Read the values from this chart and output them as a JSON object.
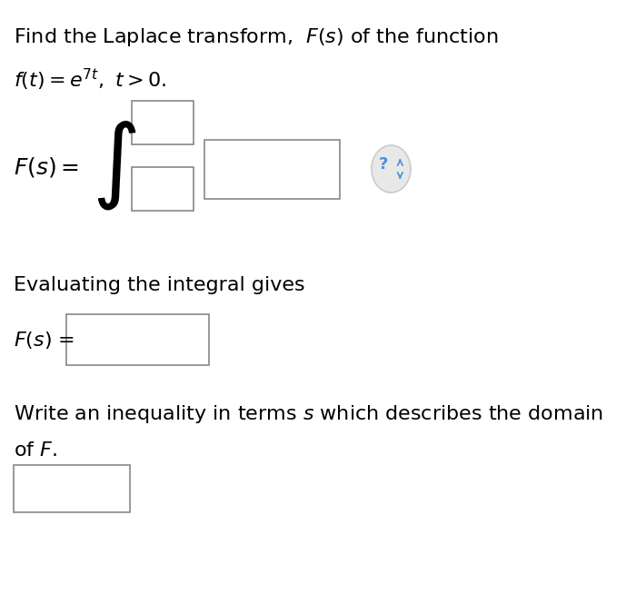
{
  "bg_color": "#ffffff",
  "text_color": "#000000",
  "title_line1": "Find the Laplace transform,  $F(s)$ of the function",
  "title_line2": "$f(t) = e^{7t},\\ t > 0.$",
  "integral_label": "$F(s) = $",
  "eval_text": "Evaluating the integral gives",
  "fs_label": "$F(s)$ =",
  "domain_text1": "Write an inequality in terms $s$ which describes the domain",
  "domain_text2": "of $F$.",
  "box_color": "#ffffff",
  "box_edge_color": "#888888",
  "question_mark_color": "#4a90d9",
  "font_size_main": 16,
  "font_size_label": 16
}
